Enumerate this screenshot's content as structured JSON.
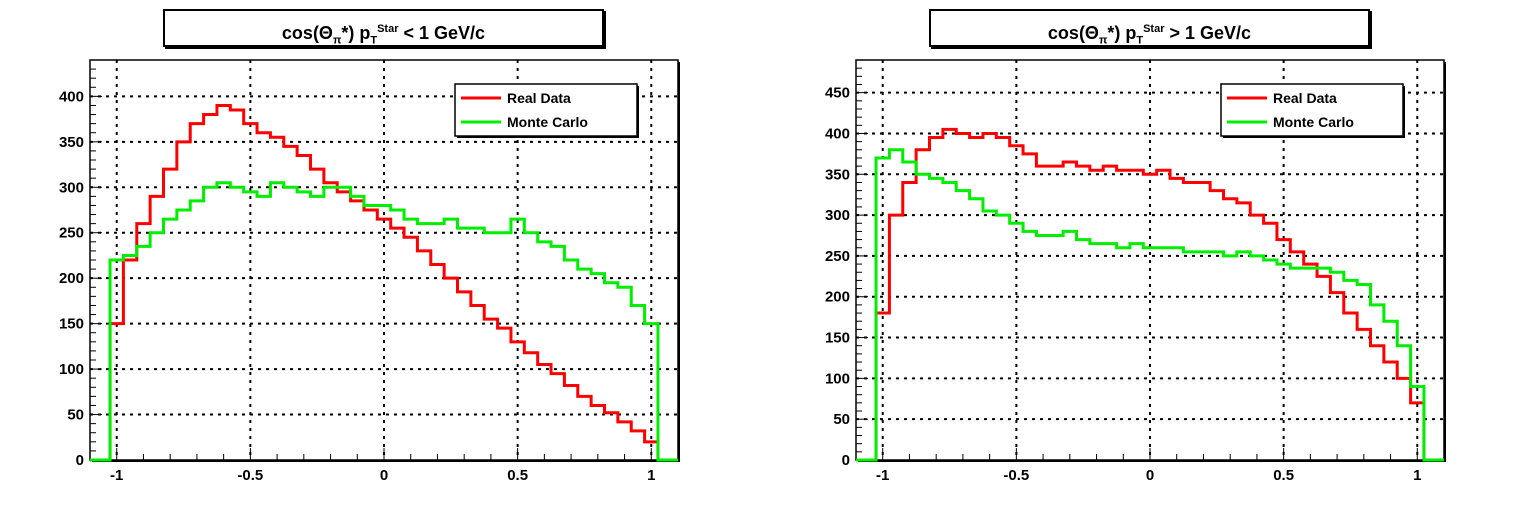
{
  "chart_data": [
    {
      "type": "line",
      "title_parts": {
        "pre": "cos(Θ",
        "sub1": "π",
        "mid": "*) p",
        "sup2": "Star",
        "sub2": "T",
        "post": " < 1 GeV/c"
      },
      "xlim": [
        -1.1,
        1.1
      ],
      "ylim": [
        0,
        440
      ],
      "xticks": [
        -1,
        -0.5,
        0,
        0.5,
        1
      ],
      "xtick_labels": [
        "-1",
        "-0.5",
        "0",
        "0.5",
        "1"
      ],
      "yticks": [
        0,
        50,
        100,
        150,
        200,
        250,
        300,
        350,
        400
      ],
      "ytick_labels": [
        "0",
        "50",
        "100",
        "150",
        "200",
        "250",
        "300",
        "350",
        "400"
      ],
      "grid": true,
      "legend_position": "top-right",
      "series": [
        {
          "name": "Real Data",
          "color": "#ff0000",
          "x": [
            -1.0,
            -0.95,
            -0.9,
            -0.85,
            -0.8,
            -0.75,
            -0.7,
            -0.65,
            -0.6,
            -0.55,
            -0.5,
            -0.45,
            -0.4,
            -0.35,
            -0.3,
            -0.25,
            -0.2,
            -0.15,
            -0.1,
            -0.05,
            0.0,
            0.05,
            0.1,
            0.15,
            0.2,
            0.25,
            0.3,
            0.35,
            0.4,
            0.45,
            0.5,
            0.55,
            0.6,
            0.65,
            0.7,
            0.75,
            0.8,
            0.85,
            0.9,
            0.95,
            1.0
          ],
          "y": [
            150,
            220,
            260,
            290,
            320,
            350,
            370,
            380,
            390,
            385,
            370,
            360,
            355,
            345,
            335,
            320,
            305,
            295,
            285,
            275,
            265,
            255,
            245,
            230,
            215,
            200,
            185,
            170,
            155,
            145,
            130,
            118,
            105,
            95,
            82,
            70,
            60,
            52,
            42,
            32,
            20
          ]
        },
        {
          "name": "Monte Carlo",
          "color": "#00ee00",
          "x": [
            -1.0,
            -0.95,
            -0.9,
            -0.85,
            -0.8,
            -0.75,
            -0.7,
            -0.65,
            -0.6,
            -0.55,
            -0.5,
            -0.45,
            -0.4,
            -0.35,
            -0.3,
            -0.25,
            -0.2,
            -0.15,
            -0.1,
            -0.05,
            0.0,
            0.05,
            0.1,
            0.15,
            0.2,
            0.25,
            0.3,
            0.35,
            0.4,
            0.45,
            0.5,
            0.55,
            0.6,
            0.65,
            0.7,
            0.75,
            0.8,
            0.85,
            0.9,
            0.95,
            1.0
          ],
          "y": [
            220,
            225,
            235,
            250,
            265,
            275,
            285,
            300,
            305,
            300,
            295,
            290,
            305,
            300,
            295,
            290,
            300,
            300,
            290,
            280,
            280,
            275,
            265,
            260,
            260,
            265,
            255,
            255,
            250,
            250,
            265,
            250,
            240,
            235,
            220,
            210,
            205,
            195,
            190,
            170,
            150
          ]
        }
      ]
    },
    {
      "type": "line",
      "title_parts": {
        "pre": "cos(Θ",
        "sub1": "π",
        "mid": "*) p",
        "sup2": "Star",
        "sub2": "T",
        "post": " > 1 GeV/c"
      },
      "xlim": [
        -1.1,
        1.1
      ],
      "ylim": [
        0,
        490
      ],
      "xticks": [
        -1,
        -0.5,
        0,
        0.5,
        1
      ],
      "xtick_labels": [
        "-1",
        "-0.5",
        "0",
        "0.5",
        "1"
      ],
      "yticks": [
        0,
        50,
        100,
        150,
        200,
        250,
        300,
        350,
        400,
        450
      ],
      "ytick_labels": [
        "0",
        "50",
        "100",
        "150",
        "200",
        "250",
        "300",
        "350",
        "400",
        "450"
      ],
      "grid": true,
      "legend_position": "top-right",
      "series": [
        {
          "name": "Real Data",
          "color": "#ff0000",
          "x": [
            -1.0,
            -0.95,
            -0.9,
            -0.85,
            -0.8,
            -0.75,
            -0.7,
            -0.65,
            -0.6,
            -0.55,
            -0.5,
            -0.45,
            -0.4,
            -0.35,
            -0.3,
            -0.25,
            -0.2,
            -0.15,
            -0.1,
            -0.05,
            0.0,
            0.05,
            0.1,
            0.15,
            0.2,
            0.25,
            0.3,
            0.35,
            0.4,
            0.45,
            0.5,
            0.55,
            0.6,
            0.65,
            0.7,
            0.75,
            0.8,
            0.85,
            0.9,
            0.95,
            1.0
          ],
          "y": [
            180,
            300,
            340,
            380,
            395,
            405,
            400,
            395,
            400,
            395,
            385,
            375,
            360,
            360,
            365,
            360,
            355,
            360,
            355,
            355,
            350,
            355,
            345,
            340,
            340,
            330,
            320,
            315,
            300,
            290,
            270,
            255,
            240,
            225,
            205,
            180,
            160,
            140,
            120,
            100,
            70
          ]
        },
        {
          "name": "Monte Carlo",
          "color": "#00ee00",
          "x": [
            -1.0,
            -0.95,
            -0.9,
            -0.85,
            -0.8,
            -0.75,
            -0.7,
            -0.65,
            -0.6,
            -0.55,
            -0.5,
            -0.45,
            -0.4,
            -0.35,
            -0.3,
            -0.25,
            -0.2,
            -0.15,
            -0.1,
            -0.05,
            0.0,
            0.05,
            0.1,
            0.15,
            0.2,
            0.25,
            0.3,
            0.35,
            0.4,
            0.45,
            0.5,
            0.55,
            0.6,
            0.65,
            0.7,
            0.75,
            0.8,
            0.85,
            0.9,
            0.95,
            1.0
          ],
          "y": [
            370,
            380,
            365,
            350,
            345,
            340,
            330,
            320,
            305,
            300,
            290,
            280,
            275,
            275,
            280,
            270,
            265,
            265,
            260,
            265,
            260,
            260,
            260,
            255,
            255,
            255,
            250,
            255,
            250,
            245,
            240,
            235,
            235,
            235,
            230,
            220,
            215,
            190,
            170,
            140,
            90
          ]
        }
      ]
    }
  ]
}
